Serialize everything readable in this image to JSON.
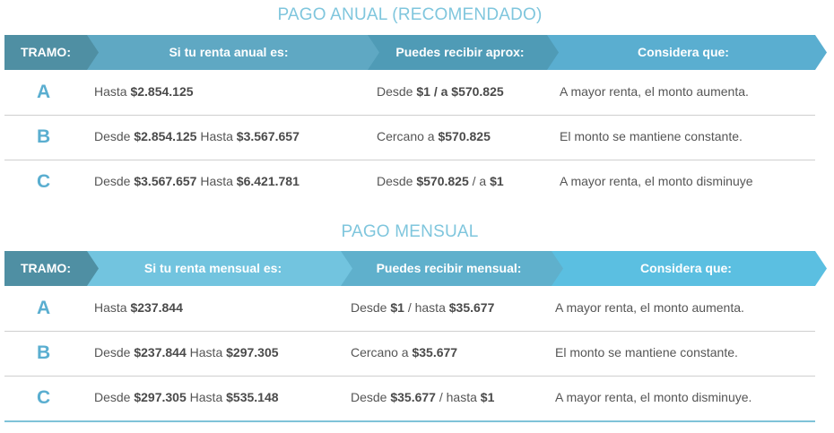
{
  "colors": {
    "title": "#7fc6dd",
    "tramo_header": "#4f8fa3",
    "annual_header": [
      "#5fa8c3",
      "#4f9bb6",
      "#5aaed0"
    ],
    "monthly_header": [
      "#72c4df",
      "#5fb0cc",
      "#5bbfe1"
    ],
    "letter": "#5aaed0"
  },
  "annual": {
    "title": "PAGO ANUAL (RECOMENDADO)",
    "headers": [
      "TRAMO:",
      "Si tu renta anual es:",
      "Puedes recibir aprox:",
      "Considera que:"
    ],
    "rows": [
      {
        "letter": "A",
        "renta": [
          {
            "t": "Hasta ",
            "b": false
          },
          {
            "t": "$2.854.125",
            "b": true
          }
        ],
        "recibir": [
          {
            "t": "Desde ",
            "b": false
          },
          {
            "t": "$1 / a $570.825",
            "b": true
          }
        ],
        "considera": "A mayor renta, el monto aumenta."
      },
      {
        "letter": "B",
        "renta": [
          {
            "t": "Desde ",
            "b": false
          },
          {
            "t": "$2.854.125",
            "b": true
          },
          {
            "t": " Hasta ",
            "b": false
          },
          {
            "t": "$3.567.657",
            "b": true
          }
        ],
        "recibir": [
          {
            "t": "Cercano a ",
            "b": false
          },
          {
            "t": "$570.825",
            "b": true
          }
        ],
        "considera": "El monto se mantiene constante."
      },
      {
        "letter": "C",
        "renta": [
          {
            "t": "Desde ",
            "b": false
          },
          {
            "t": "$3.567.657",
            "b": true
          },
          {
            "t": " Hasta ",
            "b": false
          },
          {
            "t": "$6.421.781",
            "b": true
          }
        ],
        "recibir": [
          {
            "t": "Desde ",
            "b": false
          },
          {
            "t": "$570.825",
            "b": true
          },
          {
            "t": " / a ",
            "b": false
          },
          {
            "t": "$1",
            "b": true
          }
        ],
        "considera": "A mayor renta, el monto disminuye"
      }
    ]
  },
  "monthly": {
    "title": "PAGO MENSUAL",
    "headers": [
      "TRAMO:",
      "Si tu renta mensual es:",
      "Puedes recibir mensual:",
      "Considera que:"
    ],
    "rows": [
      {
        "letter": "A",
        "renta": [
          {
            "t": "Hasta ",
            "b": false
          },
          {
            "t": "$237.844",
            "b": true
          }
        ],
        "recibir": [
          {
            "t": "Desde ",
            "b": false
          },
          {
            "t": "$1",
            "b": true
          },
          {
            "t": " / hasta ",
            "b": false
          },
          {
            "t": "$35.677",
            "b": true
          }
        ],
        "considera": "A mayor renta, el monto aumenta."
      },
      {
        "letter": "B",
        "renta": [
          {
            "t": "Desde ",
            "b": false
          },
          {
            "t": "$237.844",
            "b": true
          },
          {
            "t": " Hasta ",
            "b": false
          },
          {
            "t": "$297.305",
            "b": true
          }
        ],
        "recibir": [
          {
            "t": "Cercano a ",
            "b": false
          },
          {
            "t": "$35.677",
            "b": true
          }
        ],
        "considera": "El monto se mantiene constante."
      },
      {
        "letter": "C",
        "renta": [
          {
            "t": "Desde ",
            "b": false
          },
          {
            "t": "$297.305",
            "b": true
          },
          {
            "t": " Hasta ",
            "b": false
          },
          {
            "t": "$535.148",
            "b": true
          }
        ],
        "recibir": [
          {
            "t": "Desde ",
            "b": false
          },
          {
            "t": "$35.677",
            "b": true
          },
          {
            "t": " / hasta ",
            "b": false
          },
          {
            "t": "$1",
            "b": true
          }
        ],
        "considera": "A mayor renta, el monto disminuye."
      }
    ]
  }
}
